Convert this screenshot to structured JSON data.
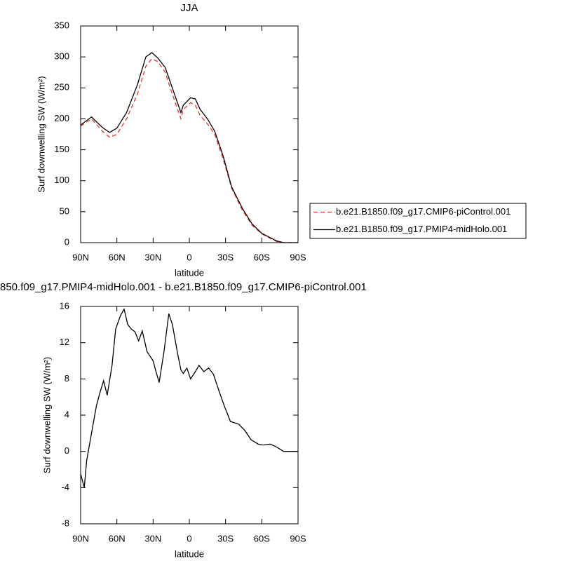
{
  "chart_data": [
    {
      "type": "line",
      "title": "JJA",
      "xlabel": "latitude",
      "ylabel": "Surf downwelling SW (W/m²)",
      "x": [
        90,
        81,
        72,
        66,
        60,
        52,
        43,
        36,
        31,
        26,
        20,
        15,
        7,
        5,
        -1,
        -5,
        -9,
        -15,
        -21,
        -28,
        -35,
        -44,
        -52,
        -60,
        -67,
        -72,
        -78,
        -90
      ],
      "series": [
        {
          "name": "b.e21.B1850.f09_g17.CMIP6-piControl.001",
          "color": "#e8332a",
          "dash": "dashed",
          "values": [
            188,
            200,
            180,
            170,
            175,
            200,
            240,
            285,
            297,
            292,
            275,
            245,
            200,
            215,
            226,
            222,
            205,
            192,
            175,
            135,
            88,
            52,
            28,
            14,
            7,
            2,
            0,
            0
          ]
        },
        {
          "name": "b.e21.B1850.f09_g17.PMIP4-midHolo.001",
          "color": "#000000",
          "dash": "solid",
          "values": [
            190,
            203,
            186,
            178,
            185,
            210,
            255,
            300,
            307,
            298,
            283,
            255,
            210,
            222,
            234,
            232,
            215,
            200,
            180,
            140,
            90,
            55,
            30,
            15,
            8,
            3,
            0,
            0
          ]
        }
      ],
      "xlim": [
        90,
        -90
      ],
      "xticks": [
        {
          "value": 90,
          "label": "90N"
        },
        {
          "value": 60,
          "label": "60N"
        },
        {
          "value": 30,
          "label": "30N"
        },
        0,
        {
          "value": -30,
          "label": "30S"
        },
        {
          "value": -60,
          "label": "60S"
        },
        {
          "value": -90,
          "label": "90S"
        }
      ],
      "ylim": [
        0,
        350
      ],
      "yticks": [
        0,
        50,
        100,
        150,
        200,
        250,
        300,
        350
      ],
      "legend": "right"
    },
    {
      "type": "line",
      "title": "850.f09_g17.PMIP4-midHolo.001 - b.e21.B1850.f09_g17.CMIP6-piControl.001",
      "xlabel": "latitude",
      "ylabel": "Surf downwelling SW (W/m²)",
      "x": [
        90,
        87,
        85,
        83,
        81,
        79,
        77,
        74,
        71,
        68,
        64,
        61,
        57,
        54,
        51,
        48,
        45,
        42,
        39,
        35,
        30,
        28,
        25,
        21,
        17,
        14,
        10,
        7,
        5,
        2,
        -1,
        -5,
        -8,
        -12,
        -16,
        -20,
        -25,
        -29,
        -34,
        -41,
        -46,
        -51,
        -57,
        -61,
        -67,
        -72,
        -78,
        -90
      ],
      "series": [
        {
          "color": "#000000",
          "dash": "solid",
          "values": [
            -2.5,
            -4,
            -1,
            0.5,
            2,
            3.5,
            5,
            6.5,
            7.8,
            6.2,
            9.5,
            13.5,
            15,
            15.7,
            14,
            13.5,
            13.2,
            12.2,
            13.3,
            11,
            10,
            9,
            7.6,
            11,
            15.2,
            14,
            11,
            9,
            8.6,
            9.2,
            8,
            8.8,
            9.5,
            8.8,
            9.2,
            8.5,
            6.5,
            5,
            3.3,
            3,
            2.3,
            1.3,
            0.8,
            0.7,
            0.8,
            0.5,
            0,
            0
          ]
        }
      ],
      "xlim": [
        90,
        -90
      ],
      "xticks": [
        {
          "value": 90,
          "label": "90N"
        },
        {
          "value": 60,
          "label": "60N"
        },
        {
          "value": 30,
          "label": "30N"
        },
        0,
        {
          "value": -30,
          "label": "30S"
        },
        {
          "value": -60,
          "label": "60S"
        },
        {
          "value": -90,
          "label": "90S"
        }
      ],
      "ylim": [
        -8,
        16
      ],
      "yticks": [
        -8,
        -4,
        0,
        4,
        8,
        12,
        16
      ]
    }
  ]
}
